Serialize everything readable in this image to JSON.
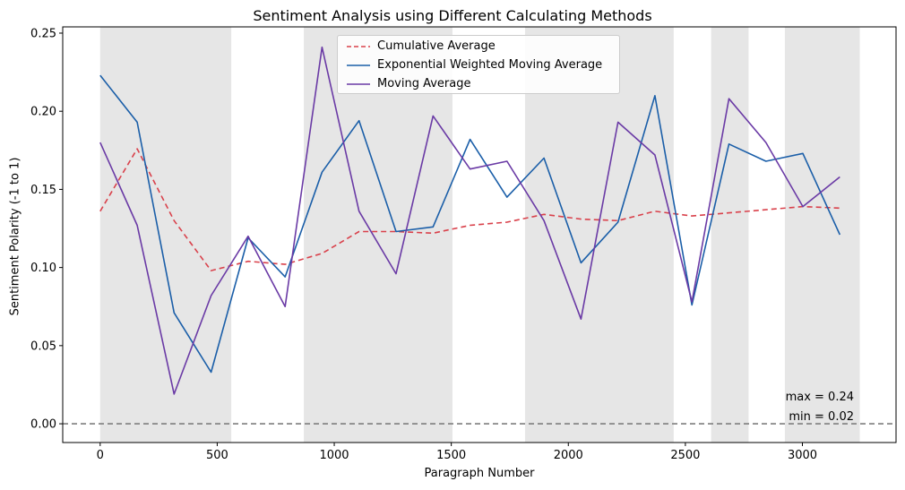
{
  "chart_data": {
    "type": "line",
    "title": "Sentiment Analysis using Different Calculating Methods",
    "xlabel": "Paragraph Number",
    "ylabel": "Sentiment Polarity (-1 to 1)",
    "xlim": [
      -160,
      3400
    ],
    "ylim": [
      -0.012,
      0.254
    ],
    "xticks": [
      0,
      500,
      1000,
      1500,
      2000,
      2500,
      3000
    ],
    "yticks": [
      0.0,
      0.05,
      0.1,
      0.15,
      0.2,
      0.25
    ],
    "ytick_labels": [
      "0.00",
      "0.05",
      "0.10",
      "0.15",
      "0.20",
      "0.25"
    ],
    "x": [
      0,
      158,
      316,
      474,
      632,
      790,
      948,
      1106,
      1264,
      1422,
      1580,
      1738,
      1896,
      2054,
      2212,
      2370,
      2528,
      2686,
      2844,
      3002,
      3160
    ],
    "series": [
      {
        "name": "Cumulative Average",
        "color": "#d9414b",
        "style": "dashed",
        "values": [
          0.136,
          0.176,
          0.13,
          0.098,
          0.104,
          0.102,
          0.109,
          0.123,
          0.123,
          0.122,
          0.127,
          0.129,
          0.134,
          0.131,
          0.13,
          0.136,
          0.133,
          0.135,
          0.137,
          0.139,
          0.138
        ]
      },
      {
        "name": "Exponential Weighted Moving Average",
        "color": "#1a5ea8",
        "style": "solid",
        "values": [
          0.223,
          0.193,
          0.071,
          0.033,
          0.119,
          0.094,
          0.161,
          0.194,
          0.123,
          0.126,
          0.182,
          0.145,
          0.17,
          0.103,
          0.129,
          0.21,
          0.076,
          0.179,
          0.168,
          0.173,
          0.121
        ]
      },
      {
        "name": "Moving Average",
        "color": "#6a3aa5",
        "style": "solid",
        "values": [
          0.18,
          0.127,
          0.019,
          0.082,
          0.12,
          0.075,
          0.241,
          0.136,
          0.096,
          0.197,
          0.163,
          0.168,
          0.13,
          0.067,
          0.193,
          0.172,
          0.078,
          0.208,
          0.18,
          0.139,
          0.158
        ]
      }
    ],
    "shaded_spans": [
      [
        0,
        560
      ],
      [
        870,
        1505
      ],
      [
        1815,
        2450
      ],
      [
        2610,
        2770
      ],
      [
        2925,
        3245
      ]
    ],
    "shade_color": "#e6e6e6",
    "hline": {
      "y": 0,
      "color": "#7f7f7f",
      "style": "dashed"
    },
    "annotations": [
      "max = 0.24",
      "min = 0.02"
    ],
    "legend_position": "top-center",
    "grid": false
  }
}
